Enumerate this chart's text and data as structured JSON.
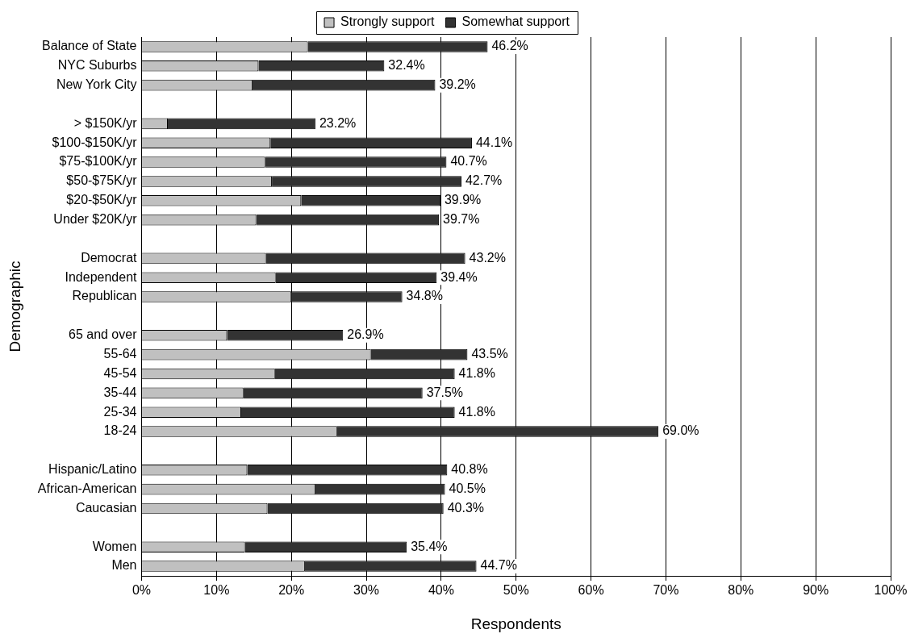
{
  "chart_data": {
    "type": "bar",
    "orientation": "horizontal",
    "stacked": true,
    "xlabel": "Respondents",
    "ylabel": "Demographic",
    "categories": [
      "Balance of State",
      "NYC Suburbs",
      "New York City",
      null,
      "> $150K/yr",
      "$100-$150K/yr",
      "$75-$100K/yr",
      "$50-$75K/yr",
      "$20-$50K/yr",
      "Under $20K/yr",
      null,
      "Democrat",
      "Independent",
      "Republican",
      null,
      "65 and over",
      "55-64",
      "45-54",
      "35-44",
      "25-34",
      "18-24",
      null,
      "Hispanic/Latino",
      "African-American",
      "Caucasian",
      null,
      "Women",
      "Men"
    ],
    "series": [
      {
        "name": "Strongly support",
        "color": "#c0c0c0",
        "values": [
          22.2,
          15.6,
          14.8,
          null,
          3.5,
          17.2,
          16.5,
          17.4,
          21.3,
          15.3,
          null,
          16.6,
          17.9,
          20.0,
          null,
          11.4,
          30.6,
          17.8,
          13.6,
          13.3,
          26.1,
          null,
          14.1,
          23.2,
          16.8,
          null,
          13.8,
          21.8
        ]
      },
      {
        "name": "Somewhat support",
        "color": "#333333",
        "values": [
          24.0,
          16.8,
          24.4,
          null,
          19.7,
          26.9,
          24.2,
          25.3,
          18.6,
          24.4,
          null,
          26.6,
          21.5,
          14.8,
          null,
          15.5,
          12.9,
          24.0,
          23.9,
          28.5,
          42.9,
          null,
          26.7,
          17.3,
          23.5,
          null,
          21.6,
          22.9
        ]
      }
    ],
    "totals": [
      "46.2%",
      "32.4%",
      "39.2%",
      null,
      "23.2%",
      "44.1%",
      "40.7%",
      "42.7%",
      "39.9%",
      "39.7%",
      null,
      "43.2%",
      "39.4%",
      "34.8%",
      null,
      "26.9%",
      "43.5%",
      "41.8%",
      "37.5%",
      "41.8%",
      "69.0%",
      null,
      "40.8%",
      "40.5%",
      "40.3%",
      null,
      "35.4%",
      "44.7%"
    ],
    "xlim": [
      0,
      100
    ],
    "xticks": [
      {
        "value": 0,
        "label": "0%"
      },
      {
        "value": 10,
        "label": "10%"
      },
      {
        "value": 20,
        "label": "20%"
      },
      {
        "value": 30,
        "label": "30%"
      },
      {
        "value": 40,
        "label": "40%"
      },
      {
        "value": 50,
        "label": "50%"
      },
      {
        "value": 60,
        "label": "60%"
      },
      {
        "value": 70,
        "label": "70%"
      },
      {
        "value": 80,
        "label": "80%"
      },
      {
        "value": 90,
        "label": "90%"
      },
      {
        "value": 100,
        "label": "100%"
      }
    ],
    "grid": "x",
    "legend": "top"
  }
}
